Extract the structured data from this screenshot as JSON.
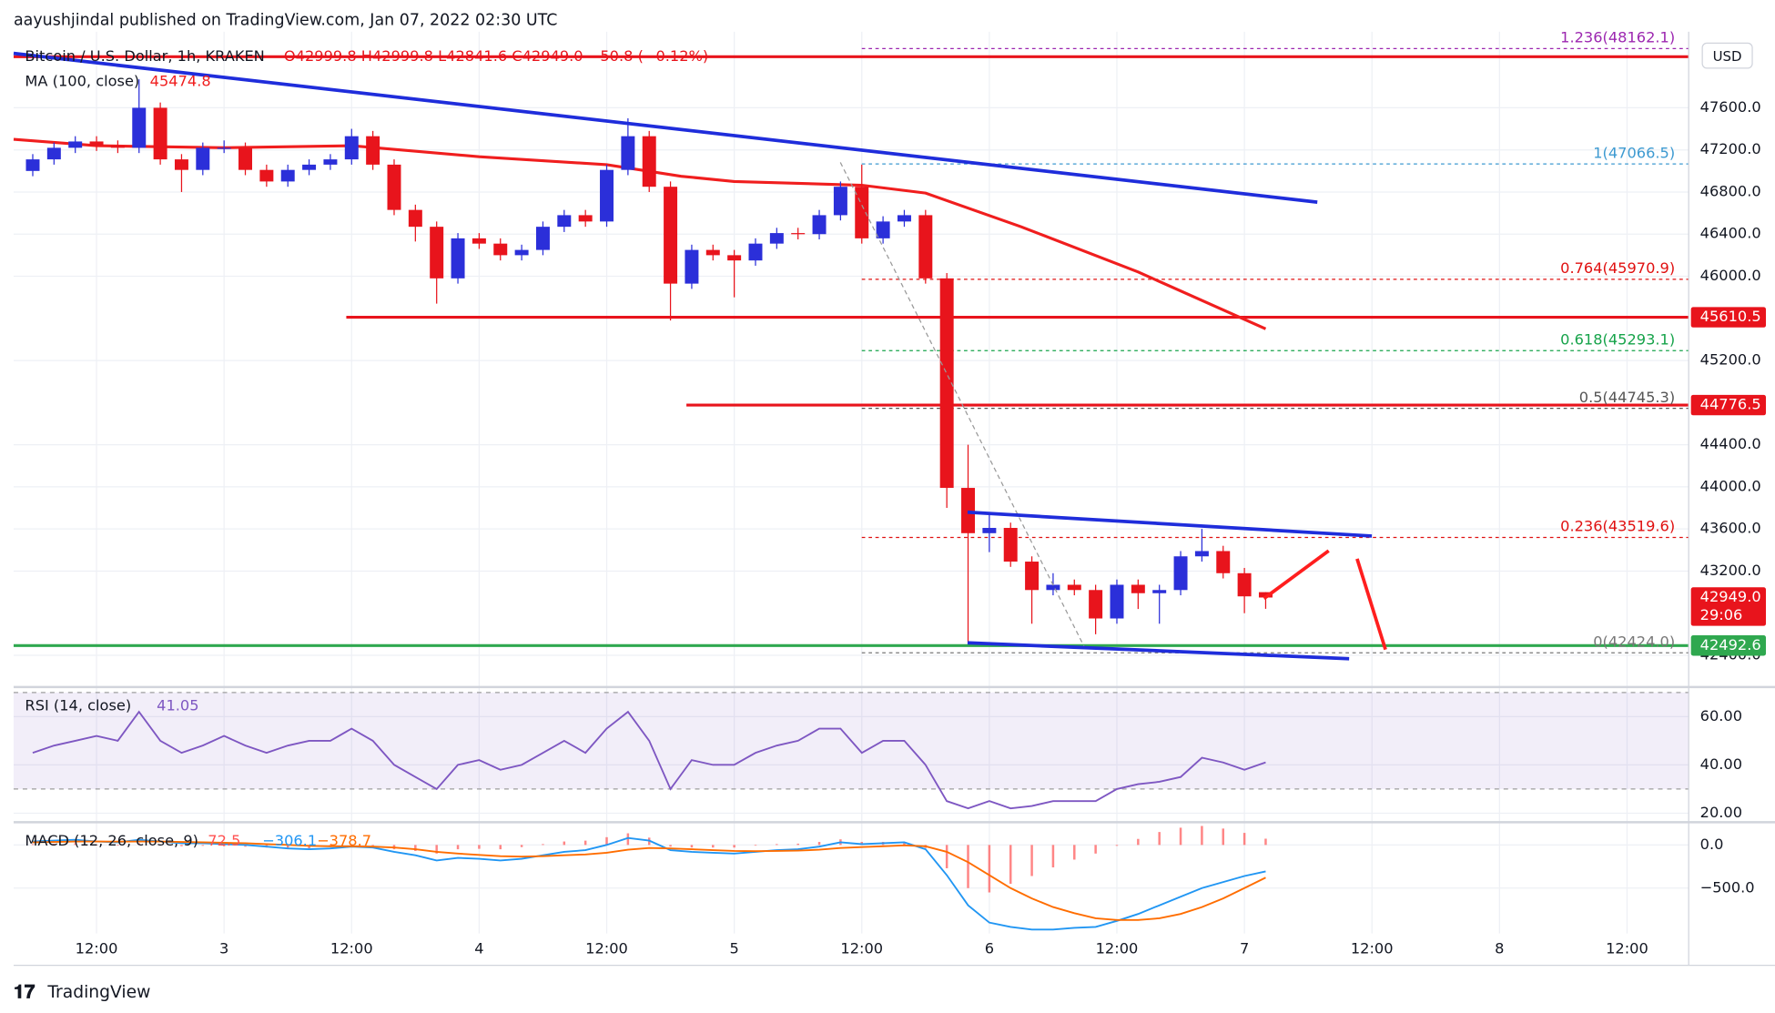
{
  "header": {
    "author_line": "aayushjindal published on TradingView.com, Jan 07, 2022 02:30 UTC"
  },
  "footer": {
    "brand": "TradingView"
  },
  "chart_data": [
    {
      "type": "candlestick",
      "symbol": "Bitcoin / U.S. Dollar, 1h, KRAKEN",
      "ohlc_legend": "O42999.8 H42999.8 L42841.6 C42949.0 −50.8 (−0.12%)",
      "currency": "USD",
      "up_color": "#2b2fd9",
      "down_color": "#e8141c",
      "x": [
        6,
        8,
        10,
        12,
        14,
        16,
        18,
        20,
        22,
        24,
        26,
        28,
        30,
        32,
        34,
        36,
        38,
        40,
        42,
        44,
        46,
        48,
        50,
        52,
        54,
        56,
        58,
        60,
        62,
        64,
        66,
        68,
        70,
        72,
        74,
        76,
        78,
        80,
        82,
        84,
        86,
        88,
        90,
        92,
        94,
        96,
        98,
        100,
        102,
        104,
        106,
        108,
        110,
        112,
        114,
        116,
        118,
        120,
        122
      ],
      "ohlc": [
        [
          47000,
          47160,
          46950,
          47110
        ],
        [
          47110,
          47270,
          47060,
          47220
        ],
        [
          47220,
          47330,
          47170,
          47280
        ],
        [
          47280,
          47330,
          47190,
          47240
        ],
        [
          47240,
          47290,
          47170,
          47220
        ],
        [
          47220,
          47870,
          47170,
          47600
        ],
        [
          47600,
          47650,
          47060,
          47110
        ],
        [
          47110,
          47160,
          46800,
          47010
        ],
        [
          47010,
          47270,
          46960,
          47220
        ],
        [
          47220,
          47290,
          47170,
          47220
        ],
        [
          47220,
          47270,
          46960,
          47010
        ],
        [
          47010,
          47060,
          46850,
          46900
        ],
        [
          46900,
          47060,
          46850,
          47010
        ],
        [
          47010,
          47110,
          46960,
          47060
        ],
        [
          47060,
          47160,
          47010,
          47110
        ],
        [
          47110,
          47400,
          47060,
          47330
        ],
        [
          47330,
          47380,
          47010,
          47060
        ],
        [
          47060,
          47110,
          46580,
          46630
        ],
        [
          46630,
          46680,
          46330,
          46470
        ],
        [
          46470,
          46520,
          45740,
          45980
        ],
        [
          45980,
          46410,
          45930,
          46360
        ],
        [
          46360,
          46410,
          46260,
          46310
        ],
        [
          46310,
          46360,
          46150,
          46200
        ],
        [
          46200,
          46300,
          46150,
          46250
        ],
        [
          46250,
          46520,
          46200,
          46470
        ],
        [
          46470,
          46630,
          46420,
          46580
        ],
        [
          46580,
          46630,
          46470,
          46520
        ],
        [
          46520,
          47060,
          46470,
          47010
        ],
        [
          47010,
          47500,
          46960,
          47330
        ],
        [
          47330,
          47380,
          46800,
          46850
        ],
        [
          46850,
          46900,
          45580,
          45930
        ],
        [
          45930,
          46300,
          45880,
          46250
        ],
        [
          46250,
          46300,
          46150,
          46200
        ],
        [
          46200,
          46250,
          45800,
          46150
        ],
        [
          46150,
          46360,
          46100,
          46310
        ],
        [
          46310,
          46460,
          46260,
          46410
        ],
        [
          46410,
          46460,
          46350,
          46400
        ],
        [
          46400,
          46630,
          46350,
          46580
        ],
        [
          46580,
          46900,
          46530,
          46850
        ],
        [
          46850,
          47060,
          46310,
          46360
        ],
        [
          46360,
          46570,
          46310,
          46520
        ],
        [
          46520,
          46630,
          46470,
          46580
        ],
        [
          46580,
          46630,
          45930,
          45980
        ],
        [
          45980,
          46030,
          43800,
          43990
        ],
        [
          43990,
          44400,
          42520,
          43560
        ],
        [
          43560,
          43760,
          43380,
          43610
        ],
        [
          43610,
          43660,
          43240,
          43290
        ],
        [
          43290,
          43340,
          42700,
          43020
        ],
        [
          43020,
          43180,
          42970,
          43070
        ],
        [
          43070,
          43120,
          42970,
          43020
        ],
        [
          43020,
          43070,
          42600,
          42750
        ],
        [
          42750,
          43120,
          42700,
          43070
        ],
        [
          43070,
          43120,
          42840,
          42990
        ],
        [
          42990,
          43070,
          42700,
          43020
        ],
        [
          43020,
          43390,
          42970,
          43340
        ],
        [
          43340,
          43600,
          43290,
          43390
        ],
        [
          43390,
          43440,
          43130,
          43180
        ],
        [
          43180,
          43230,
          42800,
          42960
        ],
        [
          42999.8,
          42999.8,
          42841.6,
          42949.0
        ]
      ],
      "ma": {
        "name": "MA (100, close)",
        "value_label": "45474.8",
        "color": "#f01e1e",
        "x": [
          4.2,
          12,
          24,
          36,
          48,
          60,
          67,
          72,
          84,
          90,
          99,
          110,
          122
        ],
        "values": [
          47300,
          47240,
          47220,
          47240,
          47135,
          47060,
          46950,
          46900,
          46865,
          46790,
          46470,
          46040,
          45500
        ]
      },
      "xlim": [
        4.2,
        161.8
      ],
      "xticks": [
        {
          "value": 12,
          "label": "12:00"
        },
        {
          "value": 24,
          "label": "3"
        },
        {
          "value": 36,
          "label": "12:00"
        },
        {
          "value": 48,
          "label": "4"
        },
        {
          "value": 60,
          "label": "12:00"
        },
        {
          "value": 72,
          "label": "5"
        },
        {
          "value": 84,
          "label": "12:00"
        },
        {
          "value": 96,
          "label": "6"
        },
        {
          "value": 108,
          "label": "12:00"
        },
        {
          "value": 120,
          "label": "7"
        },
        {
          "value": 132,
          "label": "12:00"
        },
        {
          "value": 144,
          "label": "8"
        },
        {
          "value": 156,
          "label": "12:00"
        }
      ],
      "ylim": [
        42120,
        48300
      ],
      "yticks": [
        {
          "value": 47600,
          "label": "47600.0"
        },
        {
          "value": 47200,
          "label": "47200.0"
        },
        {
          "value": 46800,
          "label": "46800.0"
        },
        {
          "value": 46400,
          "label": "46400.0"
        },
        {
          "value": 46000,
          "label": "46000.0"
        },
        {
          "value": 45200,
          "label": "45200.0"
        },
        {
          "value": 44400,
          "label": "44400.0"
        },
        {
          "value": 44000,
          "label": "44000.0"
        },
        {
          "value": 43600,
          "label": "43600.0"
        },
        {
          "value": 43200,
          "label": "43200.0"
        },
        {
          "value": 42400,
          "label": "42400.0"
        }
      ],
      "grid": true,
      "fib_from_x": 84,
      "fib_levels": [
        {
          "value": 48162.1,
          "label": "1.236(48162.1)",
          "color": "#9c27b0"
        },
        {
          "value": 47066.5,
          "label": "1(47066.5)",
          "color": "#3d9ad1"
        },
        {
          "value": 45970.9,
          "label": "0.764(45970.9)",
          "color": "#e01010"
        },
        {
          "value": 45293.1,
          "label": "0.618(45293.1)",
          "color": "#16a34a"
        },
        {
          "value": 44745.3,
          "label": "0.5(44745.3)",
          "color": "#555555"
        },
        {
          "value": 43519.6,
          "label": "0.236(43519.6)",
          "color": "#e01010"
        },
        {
          "value": 42424.0,
          "label": "0(42424.0)",
          "color": "#777777"
        }
      ],
      "hlines": [
        {
          "value": 48085,
          "color": "#e8141c",
          "from_x": 4.2
        },
        {
          "value": 45610.5,
          "color": "#e8141c",
          "from_x": 35.5
        },
        {
          "value": 44776.5,
          "color": "#e8141c",
          "from_x": 67.5
        },
        {
          "value": 42492.6,
          "color": "#2fa84f",
          "from_x": 4.2
        }
      ],
      "price_tags": [
        {
          "value": 45610.5,
          "label": "45610.5",
          "color": "#e8141c"
        },
        {
          "value": 44776.5,
          "label": "44776.5",
          "color": "#e8141c"
        },
        {
          "value": 42949.0,
          "label": "42949.0",
          "countdown": "29:06",
          "color": "#e8141c"
        },
        {
          "value": 42492.6,
          "label": "42492.6",
          "color": "#2fa84f"
        }
      ]
    },
    {
      "type": "line",
      "title": "RSI (14, close)",
      "value_label": "41.05",
      "color": "#7e57c2",
      "values": [
        45,
        48,
        50,
        52,
        50,
        62,
        50,
        45,
        48,
        52,
        48,
        45,
        48,
        50,
        50,
        55,
        50,
        40,
        35,
        30,
        40,
        42,
        38,
        40,
        45,
        50,
        45,
        55,
        62,
        50,
        30,
        42,
        40,
        40,
        45,
        48,
        50,
        55,
        55,
        45,
        50,
        50,
        40,
        25,
        22,
        25,
        22,
        23,
        25,
        25,
        25,
        30,
        32,
        33,
        35,
        43,
        41,
        38,
        41.05
      ],
      "band": [
        30,
        70
      ],
      "band_color": "#7e57c2",
      "ylim": [
        17.2,
        71.3
      ],
      "yticks": [
        {
          "value": 60,
          "label": "60.00"
        },
        {
          "value": 40,
          "label": "40.00"
        },
        {
          "value": 20,
          "label": "20.00"
        }
      ]
    },
    {
      "type": "macd",
      "title": "MACD (12, 26, close, 9)",
      "histogram": {
        "color": "#ff5252",
        "value_label": "72.5",
        "values": [
          10,
          15,
          20,
          0,
          -8,
          20,
          0,
          -15,
          -10,
          -15,
          -20,
          -30,
          -40,
          -40,
          -25,
          -5,
          -10,
          -50,
          -70,
          -100,
          -50,
          -45,
          -50,
          -25,
          10,
          40,
          50,
          90,
          135,
          85,
          -20,
          -30,
          -30,
          -30,
          -8,
          10,
          15,
          35,
          65,
          35,
          35,
          35,
          -35,
          -270,
          -500,
          -550,
          -450,
          -360,
          -260,
          -170,
          -100,
          -10,
          70,
          150,
          200,
          220,
          190,
          140,
          72.5
        ]
      },
      "macd": {
        "color": "#2196f3",
        "value_label": "−306.1",
        "values": [
          40,
          50,
          60,
          40,
          30,
          60,
          40,
          20,
          20,
          10,
          0,
          -20,
          -40,
          -50,
          -40,
          -20,
          -30,
          -80,
          -120,
          -180,
          -150,
          -160,
          -180,
          -160,
          -120,
          -80,
          -60,
          0,
          80,
          50,
          -60,
          -80,
          -90,
          -100,
          -80,
          -60,
          -50,
          -20,
          30,
          10,
          20,
          30,
          -50,
          -350,
          -700,
          -900,
          -950,
          -980,
          -980,
          -960,
          -950,
          -880,
          -800,
          -700,
          -600,
          -500,
          -430,
          -360,
          -306.1
        ]
      },
      "signal": {
        "color": "#ff6d00",
        "value_label": "−378.7",
        "values": [
          30,
          35,
          40,
          40,
          38,
          40,
          40,
          35,
          30,
          25,
          20,
          10,
          0,
          -10,
          -15,
          -15,
          -20,
          -30,
          -50,
          -80,
          -100,
          -115,
          -130,
          -135,
          -130,
          -120,
          -110,
          -90,
          -55,
          -35,
          -40,
          -50,
          -60,
          -70,
          -72,
          -70,
          -65,
          -55,
          -35,
          -25,
          -15,
          -5,
          -15,
          -80,
          -200,
          -350,
          -500,
          -620,
          -720,
          -790,
          -850,
          -870,
          -870,
          -850,
          -800,
          -720,
          -620,
          -500,
          -378.7
        ]
      },
      "ylim": [
        -1026,
        224
      ],
      "yticks": [
        {
          "value": 0,
          "label": "0.0"
        },
        {
          "value": -500,
          "label": "−500.0"
        }
      ]
    }
  ]
}
